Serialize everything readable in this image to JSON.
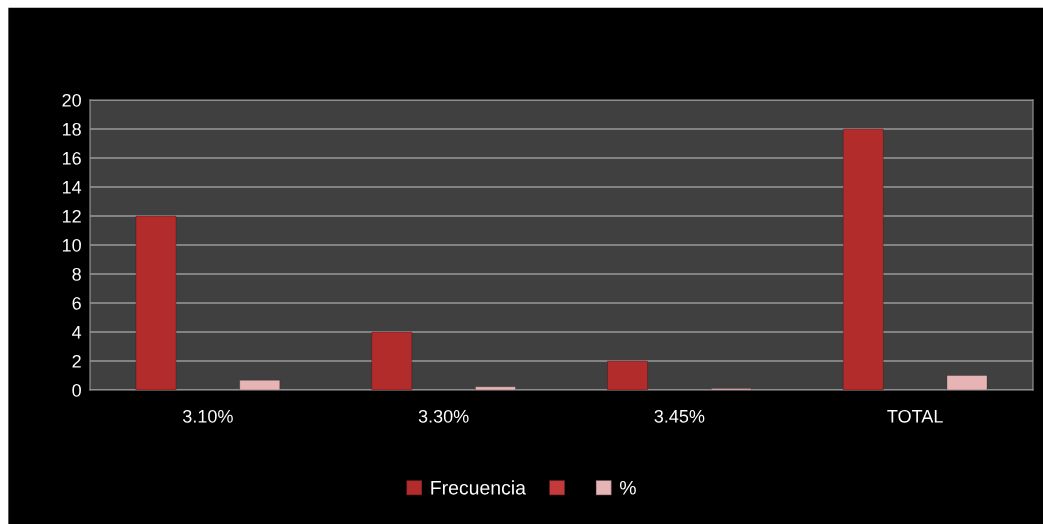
{
  "chart_data": {
    "type": "bar",
    "categories": [
      "3.10%",
      "3.30%",
      "3.45%",
      "TOTAL"
    ],
    "series": [
      {
        "name": "Frecuencia",
        "color": "#b22c2c",
        "values": [
          12,
          4,
          2,
          18
        ]
      },
      {
        "color": "#c23a3a",
        "values": [
          null,
          null,
          null,
          null
        ]
      },
      {
        "name": "%",
        "color": "#e6b4b4",
        "values": [
          0.67,
          0.22,
          0.11,
          1.0
        ]
      }
    ],
    "ylim": [
      0,
      20
    ],
    "yticks": [
      0,
      2,
      4,
      6,
      8,
      10,
      12,
      14,
      16,
      18,
      20
    ],
    "grid": "y",
    "legend": "bottom"
  }
}
